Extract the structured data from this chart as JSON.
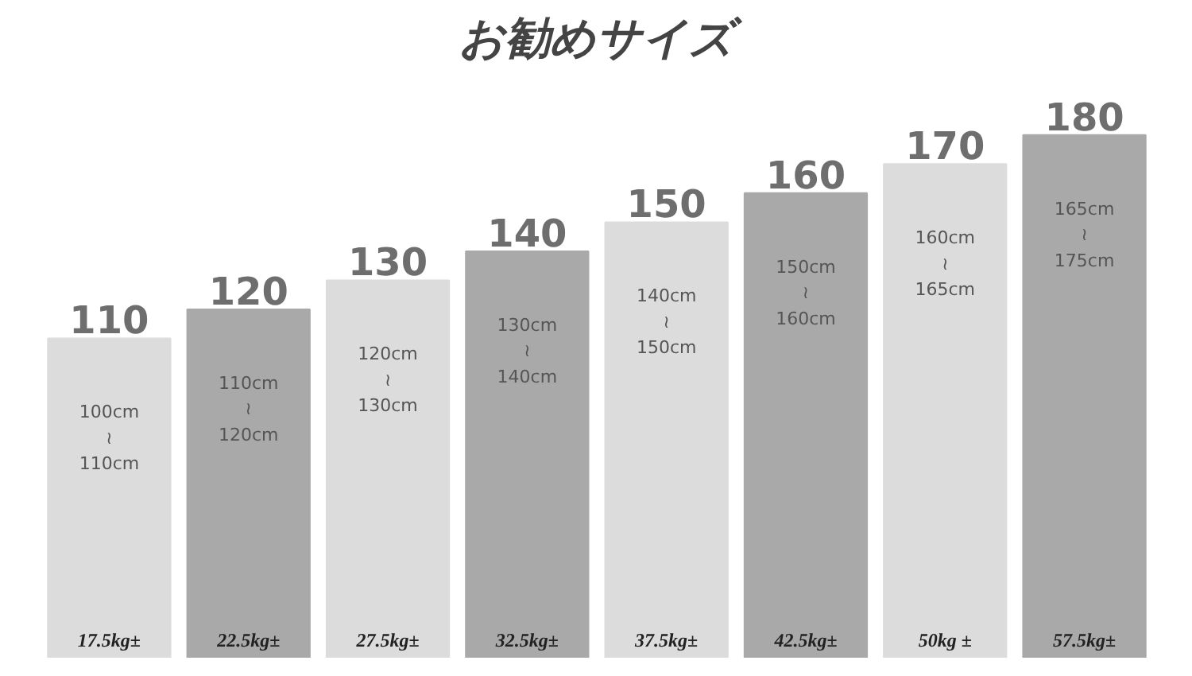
{
  "chart_data": {
    "type": "bar",
    "title": "お勧めサイズ",
    "categories": [
      "17.5kg±",
      "22.5kg±",
      "27.5kg±",
      "32.5kg±",
      "37.5kg±",
      "42.5kg±",
      "50kg ±",
      "57.5kg±"
    ],
    "values": [
      110,
      120,
      130,
      140,
      150,
      160,
      170,
      180
    ],
    "colors": [
      "#dcdcdc",
      "#a9a9a9",
      "#dcdcdc",
      "#a9a9a9",
      "#dcdcdc",
      "#a9a9a9",
      "#dcdcdc",
      "#a9a9a9"
    ],
    "data_labels": true,
    "tick_labels": false,
    "grid": false,
    "annotations": [
      "100cm\n≀\n110cm",
      "110cm\n≀\n120cm",
      "120cm\n≀\n130cm",
      "130cm\n≀\n140cm",
      "140cm\n≀\n150cm",
      "150cm\n≀\n160cm",
      "160cm\n≀\n165cm",
      "165cm\n≀\n175cm"
    ]
  }
}
